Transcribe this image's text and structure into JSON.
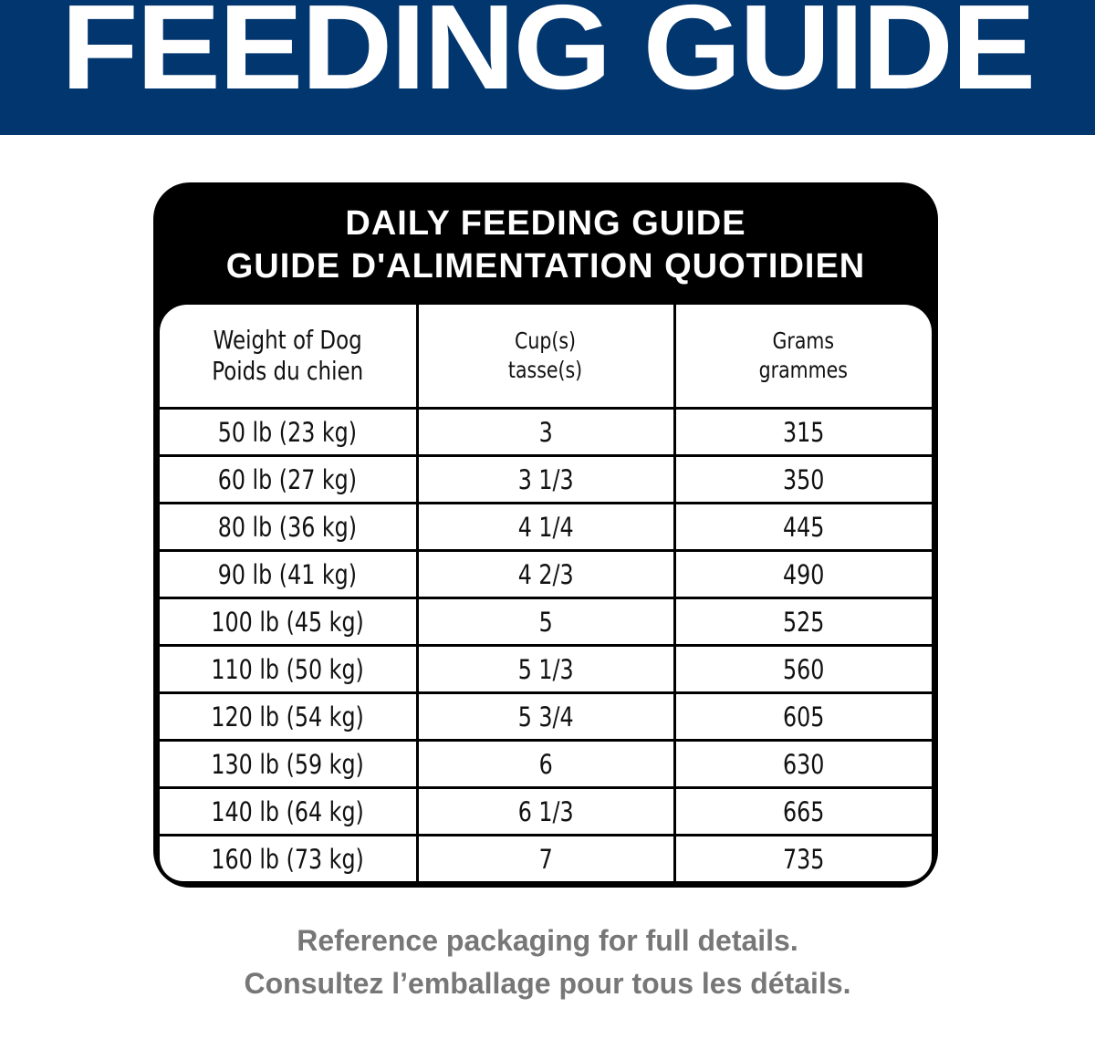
{
  "banner": {
    "title": "FEEDING GUIDE",
    "color": "#02366f"
  },
  "table": {
    "title_en": "DAILY FEEDING GUIDE",
    "title_fr": "GUIDE D'ALIMENTATION QUOTIDIEN",
    "headers": [
      {
        "en": "Weight of Dog",
        "fr": "Poids du chien"
      },
      {
        "en": "Cup(s)",
        "fr": "tasse(s)"
      },
      {
        "en": "Grams",
        "fr": "grammes"
      }
    ],
    "rows": [
      {
        "weight": "50 lb (23 kg)",
        "cups": "3",
        "grams": "315"
      },
      {
        "weight": "60 lb (27 kg)",
        "cups": "3 1/3",
        "grams": "350"
      },
      {
        "weight": "80 lb (36 kg)",
        "cups": "4 1/4",
        "grams": "445"
      },
      {
        "weight": "90 lb (41 kg)",
        "cups": "4 2/3",
        "grams": "490"
      },
      {
        "weight": "100 lb (45 kg)",
        "cups": "5",
        "grams": "525"
      },
      {
        "weight": "110 lb (50 kg)",
        "cups": "5 1/3",
        "grams": "560"
      },
      {
        "weight": "120 lb (54 kg)",
        "cups": "5 3/4",
        "grams": "605"
      },
      {
        "weight": "130 lb (59 kg)",
        "cups": "6",
        "grams": "630"
      },
      {
        "weight": "140 lb (64 kg)",
        "cups": "6 1/3",
        "grams": "665"
      },
      {
        "weight": "160 lb (73 kg)",
        "cups": "7",
        "grams": "735"
      }
    ]
  },
  "footer": {
    "line_en": "Reference packaging for full details.",
    "line_fr": "Consultez l’emballage pour tous les détails."
  }
}
